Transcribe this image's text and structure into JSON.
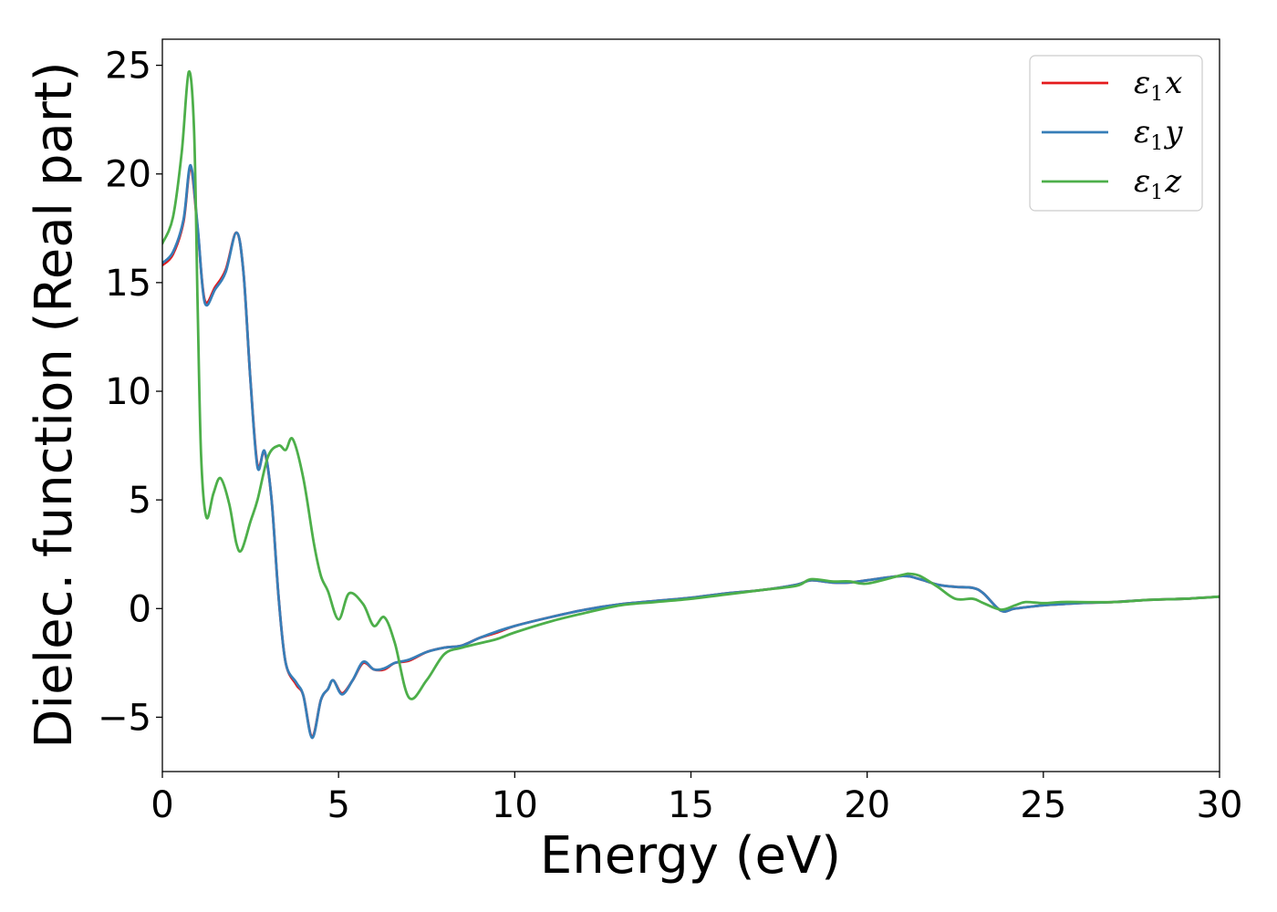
{
  "chart_data": {
    "type": "line",
    "title": "",
    "xlabel": "Energy (eV)",
    "ylabel": "Dielec. function (Real part)",
    "xlim": [
      0,
      30
    ],
    "ylim": [
      -7.5,
      26.2
    ],
    "grid": false,
    "legend_position": "top-right",
    "x_ticks": [
      0,
      5,
      10,
      15,
      20,
      25,
      30
    ],
    "x_tick_labels": [
      "0",
      "5",
      "10",
      "15",
      "20",
      "25",
      "30"
    ],
    "y_ticks": [
      -5,
      0,
      5,
      10,
      15,
      20,
      25
    ],
    "y_tick_labels": [
      "−5",
      "0",
      "5",
      "10",
      "15",
      "20",
      "25"
    ],
    "series": [
      {
        "name": "ε₁x",
        "legend_base": "ε",
        "legend_sub": "1",
        "legend_var": "x",
        "color": "#e41a1c",
        "points": [
          [
            0,
            15.8
          ],
          [
            0.3,
            16.3
          ],
          [
            0.6,
            17.8
          ],
          [
            0.8,
            20.3
          ],
          [
            1.0,
            17.5
          ],
          [
            1.2,
            14.2
          ],
          [
            1.5,
            14.8
          ],
          [
            1.8,
            15.6
          ],
          [
            2.1,
            17.3
          ],
          [
            2.3,
            15.5
          ],
          [
            2.5,
            10.5
          ],
          [
            2.7,
            6.6
          ],
          [
            2.9,
            7.2
          ],
          [
            3.1,
            5.0
          ],
          [
            3.3,
            0.5
          ],
          [
            3.5,
            -2.5
          ],
          [
            3.8,
            -3.5
          ],
          [
            4.0,
            -4.0
          ],
          [
            4.25,
            -5.9
          ],
          [
            4.5,
            -4.2
          ],
          [
            4.7,
            -3.7
          ],
          [
            4.85,
            -3.3
          ],
          [
            5.1,
            -3.9
          ],
          [
            5.4,
            -3.3
          ],
          [
            5.7,
            -2.5
          ],
          [
            6.0,
            -2.8
          ],
          [
            6.3,
            -2.8
          ],
          [
            6.6,
            -2.5
          ],
          [
            7.0,
            -2.4
          ],
          [
            7.5,
            -2.0
          ],
          [
            8.0,
            -1.8
          ],
          [
            8.5,
            -1.7
          ],
          [
            9.0,
            -1.35
          ],
          [
            9.5,
            -1.1
          ],
          [
            10.0,
            -0.8
          ],
          [
            11.0,
            -0.4
          ],
          [
            12.0,
            -0.05
          ],
          [
            13.0,
            0.2
          ],
          [
            14.0,
            0.35
          ],
          [
            15.0,
            0.5
          ],
          [
            16.0,
            0.7
          ],
          [
            17.0,
            0.85
          ],
          [
            18.0,
            1.1
          ],
          [
            18.4,
            1.3
          ],
          [
            19.0,
            1.2
          ],
          [
            19.5,
            1.2
          ],
          [
            20.0,
            1.3
          ],
          [
            21.0,
            1.5
          ],
          [
            21.5,
            1.35
          ],
          [
            22.0,
            1.1
          ],
          [
            22.5,
            1.0
          ],
          [
            23.0,
            0.95
          ],
          [
            23.3,
            0.7
          ],
          [
            23.8,
            -0.1
          ],
          [
            24.2,
            0.0
          ],
          [
            25.0,
            0.15
          ],
          [
            25.5,
            0.2
          ],
          [
            26.0,
            0.25
          ],
          [
            27.0,
            0.3
          ],
          [
            28.0,
            0.4
          ],
          [
            29.0,
            0.45
          ],
          [
            30.0,
            0.55
          ]
        ]
      },
      {
        "name": "ε₁y",
        "legend_base": "ε",
        "legend_sub": "1",
        "legend_var": "y",
        "color": "#377eb8",
        "points": [
          [
            0,
            15.9
          ],
          [
            0.3,
            16.4
          ],
          [
            0.6,
            17.9
          ],
          [
            0.8,
            20.4
          ],
          [
            1.0,
            17.6
          ],
          [
            1.2,
            14.1
          ],
          [
            1.5,
            14.7
          ],
          [
            1.8,
            15.5
          ],
          [
            2.1,
            17.3
          ],
          [
            2.3,
            15.5
          ],
          [
            2.5,
            10.5
          ],
          [
            2.7,
            6.5
          ],
          [
            2.9,
            7.25
          ],
          [
            3.1,
            5.0
          ],
          [
            3.3,
            0.5
          ],
          [
            3.5,
            -2.5
          ],
          [
            3.8,
            -3.4
          ],
          [
            4.0,
            -4.0
          ],
          [
            4.25,
            -5.95
          ],
          [
            4.5,
            -4.2
          ],
          [
            4.7,
            -3.7
          ],
          [
            4.85,
            -3.3
          ],
          [
            5.1,
            -3.95
          ],
          [
            5.4,
            -3.3
          ],
          [
            5.7,
            -2.45
          ],
          [
            6.0,
            -2.8
          ],
          [
            6.3,
            -2.75
          ],
          [
            6.6,
            -2.5
          ],
          [
            7.0,
            -2.35
          ],
          [
            7.5,
            -2.0
          ],
          [
            8.0,
            -1.8
          ],
          [
            8.5,
            -1.7
          ],
          [
            9.0,
            -1.35
          ],
          [
            9.5,
            -1.05
          ],
          [
            10.0,
            -0.8
          ],
          [
            11.0,
            -0.4
          ],
          [
            12.0,
            -0.05
          ],
          [
            13.0,
            0.2
          ],
          [
            14.0,
            0.35
          ],
          [
            15.0,
            0.5
          ],
          [
            16.0,
            0.7
          ],
          [
            17.0,
            0.85
          ],
          [
            18.0,
            1.1
          ],
          [
            18.4,
            1.3
          ],
          [
            19.0,
            1.2
          ],
          [
            19.5,
            1.2
          ],
          [
            20.0,
            1.3
          ],
          [
            21.0,
            1.5
          ],
          [
            21.5,
            1.35
          ],
          [
            22.0,
            1.1
          ],
          [
            22.5,
            1.0
          ],
          [
            23.0,
            0.95
          ],
          [
            23.3,
            0.7
          ],
          [
            23.8,
            -0.1
          ],
          [
            24.2,
            0.0
          ],
          [
            25.0,
            0.15
          ],
          [
            25.5,
            0.2
          ],
          [
            26.0,
            0.25
          ],
          [
            27.0,
            0.3
          ],
          [
            28.0,
            0.4
          ],
          [
            29.0,
            0.45
          ],
          [
            30.0,
            0.55
          ]
        ]
      },
      {
        "name": "ε₁z",
        "legend_base": "ε",
        "legend_sub": "1",
        "legend_var": "z",
        "color": "#4daf4a",
        "points": [
          [
            0,
            16.8
          ],
          [
            0.3,
            18.0
          ],
          [
            0.55,
            21.0
          ],
          [
            0.75,
            24.7
          ],
          [
            0.9,
            22.0
          ],
          [
            1.0,
            14.0
          ],
          [
            1.1,
            7.0
          ],
          [
            1.25,
            4.2
          ],
          [
            1.45,
            5.3
          ],
          [
            1.65,
            6.0
          ],
          [
            1.9,
            4.8
          ],
          [
            2.1,
            3.0
          ],
          [
            2.25,
            2.7
          ],
          [
            2.5,
            4.0
          ],
          [
            2.7,
            5.0
          ],
          [
            3.0,
            7.0
          ],
          [
            3.3,
            7.5
          ],
          [
            3.5,
            7.3
          ],
          [
            3.7,
            7.8
          ],
          [
            4.0,
            6.0
          ],
          [
            4.3,
            3.0
          ],
          [
            4.5,
            1.5
          ],
          [
            4.7,
            0.8
          ],
          [
            5.0,
            -0.5
          ],
          [
            5.3,
            0.7
          ],
          [
            5.7,
            0.2
          ],
          [
            6.0,
            -0.8
          ],
          [
            6.3,
            -0.4
          ],
          [
            6.6,
            -1.6
          ],
          [
            7.0,
            -4.1
          ],
          [
            7.5,
            -3.3
          ],
          [
            8.0,
            -2.1
          ],
          [
            8.5,
            -1.8
          ],
          [
            9.0,
            -1.6
          ],
          [
            9.5,
            -1.4
          ],
          [
            10.0,
            -1.1
          ],
          [
            11.0,
            -0.6
          ],
          [
            12.0,
            -0.2
          ],
          [
            13.0,
            0.15
          ],
          [
            14.0,
            0.3
          ],
          [
            15.0,
            0.45
          ],
          [
            16.0,
            0.65
          ],
          [
            17.0,
            0.85
          ],
          [
            18.0,
            1.05
          ],
          [
            18.4,
            1.35
          ],
          [
            19.0,
            1.25
          ],
          [
            19.5,
            1.25
          ],
          [
            20.0,
            1.15
          ],
          [
            21.0,
            1.55
          ],
          [
            21.2,
            1.6
          ],
          [
            21.5,
            1.5
          ],
          [
            22.0,
            1.0
          ],
          [
            22.5,
            0.45
          ],
          [
            23.0,
            0.45
          ],
          [
            23.3,
            0.25
          ],
          [
            23.8,
            -0.05
          ],
          [
            24.2,
            0.15
          ],
          [
            24.5,
            0.3
          ],
          [
            25.0,
            0.25
          ],
          [
            25.5,
            0.3
          ],
          [
            26.0,
            0.3
          ],
          [
            27.0,
            0.3
          ],
          [
            28.0,
            0.4
          ],
          [
            29.0,
            0.45
          ],
          [
            30.0,
            0.55
          ]
        ]
      }
    ]
  }
}
